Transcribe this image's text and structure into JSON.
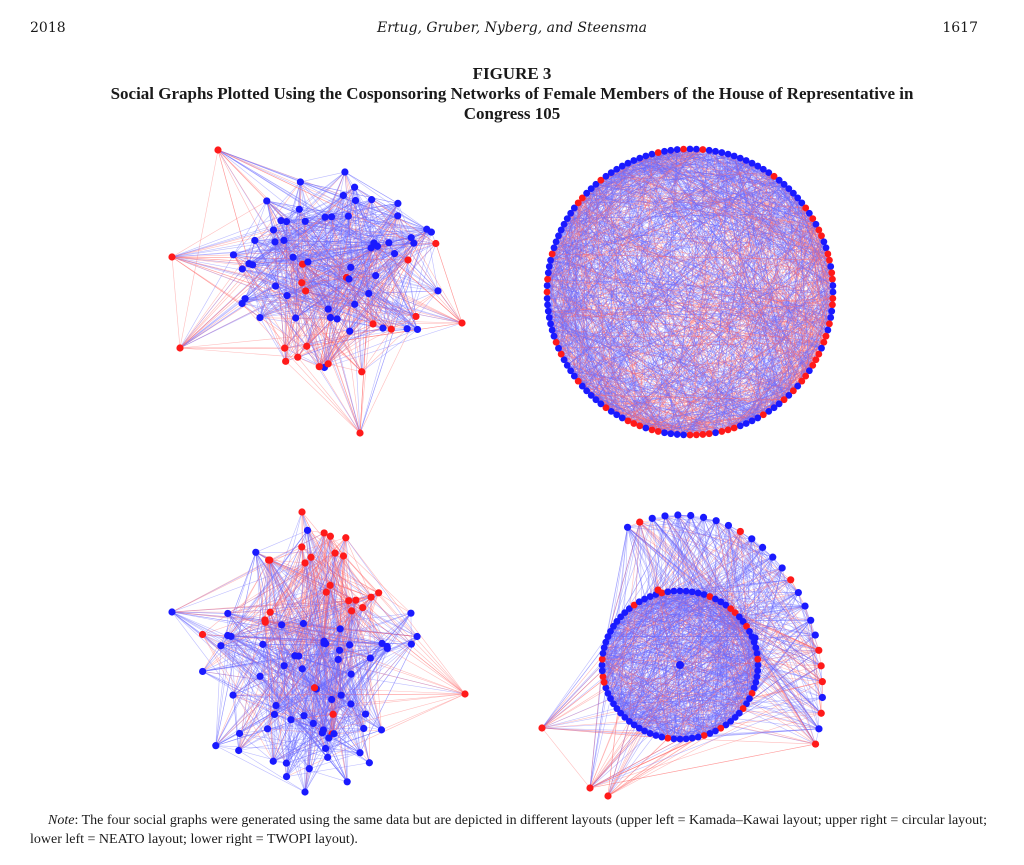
{
  "running_head": {
    "year": "2018",
    "authors": "Ertug, Gruber, Nyberg, and Steensma",
    "page": "1617"
  },
  "figure": {
    "number": "FIGURE 3",
    "title": "Social Graphs Plotted Using the Cosponsoring Networks of Female Members of the House of Representative in Congress 105"
  },
  "colors": {
    "node_a": "#ff1a1a",
    "node_b": "#1a1aff",
    "edge_a": "#ff6b6b",
    "edge_b": "#6b6bff"
  },
  "panels": [
    {
      "position": "upper left",
      "layout": "Kamada–Kawai layout"
    },
    {
      "position": "upper right",
      "layout": "circular layout"
    },
    {
      "position": "lower left",
      "layout": "NEATO layout"
    },
    {
      "position": "lower right",
      "layout": "TWOPI layout"
    }
  ],
  "note": {
    "label": "Note",
    "text": ": The four social graphs were generated using the same data but are depicted in different layouts (upper left = Kamada–Kawai layout; upper right = circular layout; lower left = NEATO layout; lower right = TWOPI layout)."
  }
}
